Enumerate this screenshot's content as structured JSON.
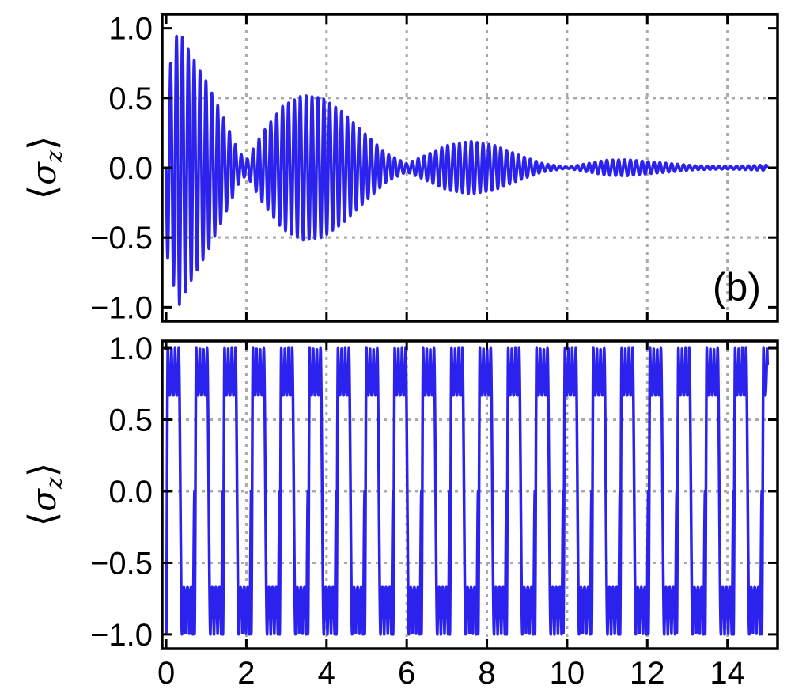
{
  "chart_data": [
    {
      "type": "line",
      "panel_label": "(b)",
      "ylabel": {
        "bracket_open": "⟨",
        "symbol": "σ",
        "subscript": "z",
        "bracket_close": "⟩"
      },
      "xlim": [
        -0.1,
        15.25
      ],
      "ylim": [
        -1.1,
        1.1
      ],
      "grid": true,
      "x_gridlines": [
        2,
        4,
        6,
        8,
        10,
        12,
        14
      ],
      "y_gridlines": [
        -0.5,
        0.0,
        0.5
      ],
      "yticks": [
        -1.0,
        -0.5,
        0.0,
        0.5,
        1.0
      ],
      "ytick_labels": [
        "−1.0",
        "−0.5",
        "0.0",
        "0.5",
        "1.0"
      ],
      "x_tick_positions": [
        0,
        2,
        4,
        6,
        8,
        10,
        12,
        14
      ],
      "series": [
        {
          "color": "#2b22ee",
          "carrier_frequency": 6.8,
          "x_range": [
            0,
            15
          ],
          "envelope": [
            [
              0.0,
              0.6
            ],
            [
              0.3,
              1.0
            ],
            [
              0.6,
              0.82
            ],
            [
              1.0,
              0.62
            ],
            [
              1.4,
              0.38
            ],
            [
              1.8,
              0.12
            ],
            [
              2.0,
              0.05
            ],
            [
              2.4,
              0.25
            ],
            [
              2.9,
              0.44
            ],
            [
              3.4,
              0.52
            ],
            [
              3.9,
              0.5
            ],
            [
              4.4,
              0.4
            ],
            [
              4.9,
              0.26
            ],
            [
              5.5,
              0.1
            ],
            [
              6.0,
              0.03
            ],
            [
              6.4,
              0.08
            ],
            [
              7.0,
              0.16
            ],
            [
              7.6,
              0.19
            ],
            [
              8.2,
              0.16
            ],
            [
              8.8,
              0.09
            ],
            [
              9.4,
              0.03
            ],
            [
              10.0,
              0.005
            ],
            [
              10.5,
              0.03
            ],
            [
              11.0,
              0.055
            ],
            [
              11.5,
              0.058
            ],
            [
              12.0,
              0.045
            ],
            [
              12.6,
              0.03
            ],
            [
              13.2,
              0.015
            ],
            [
              14.0,
              0.01
            ],
            [
              15.0,
              0.02
            ]
          ]
        }
      ]
    },
    {
      "type": "line",
      "ylabel": {
        "bracket_open": "⟨",
        "symbol": "σ",
        "subscript": "z",
        "bracket_close": "⟩"
      },
      "xlim": [
        -0.1,
        15.25
      ],
      "ylim": [
        -1.1,
        1.05
      ],
      "grid": true,
      "x_gridlines": [
        2,
        4,
        6,
        8,
        10,
        12,
        14
      ],
      "y_gridlines": [
        -0.5,
        0.0,
        0.5
      ],
      "yticks": [
        -1.0,
        -0.5,
        0.0,
        0.5,
        1.0
      ],
      "ytick_labels": [
        "−1.0",
        "−0.5",
        "0.0",
        "0.5",
        "1.0"
      ],
      "xticks": [
        0,
        2,
        4,
        6,
        8,
        10,
        12,
        14
      ],
      "xtick_labels": [
        "0",
        "2",
        "4",
        "6",
        "8",
        "10",
        "12",
        "14"
      ],
      "series": [
        {
          "color": "#2b22ee",
          "x_range": [
            0,
            15
          ],
          "period": 0.7075,
          "dip_depth": 0.33,
          "dip_frequency": 28.5,
          "saturation_level": 1.0
        }
      ]
    }
  ]
}
